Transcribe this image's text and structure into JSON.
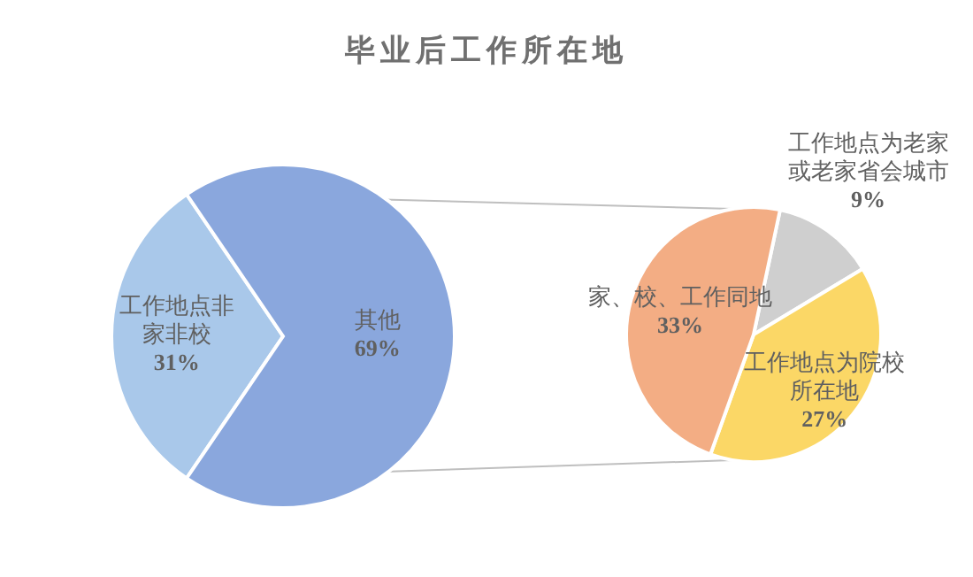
{
  "chart_data": [
    {
      "type": "pie",
      "title": "毕业后工作所在地",
      "categories": [
        "工作地点非家非校",
        "其他"
      ],
      "values": [
        31,
        69
      ],
      "value_labels": [
        "31%",
        "69%"
      ],
      "colors": [
        "#a9c8ea",
        "#8aa7dd"
      ]
    },
    {
      "type": "pie",
      "categories": [
        "工作地点为老家或老家省会城市",
        "工作地点为院校所在地",
        "家、校、工作同地"
      ],
      "values": [
        9,
        27,
        33
      ],
      "value_labels": [
        "9%",
        "27%",
        "33%"
      ],
      "colors": [
        "#cfcfcf",
        "#fbd766",
        "#f3ad84"
      ]
    }
  ]
}
